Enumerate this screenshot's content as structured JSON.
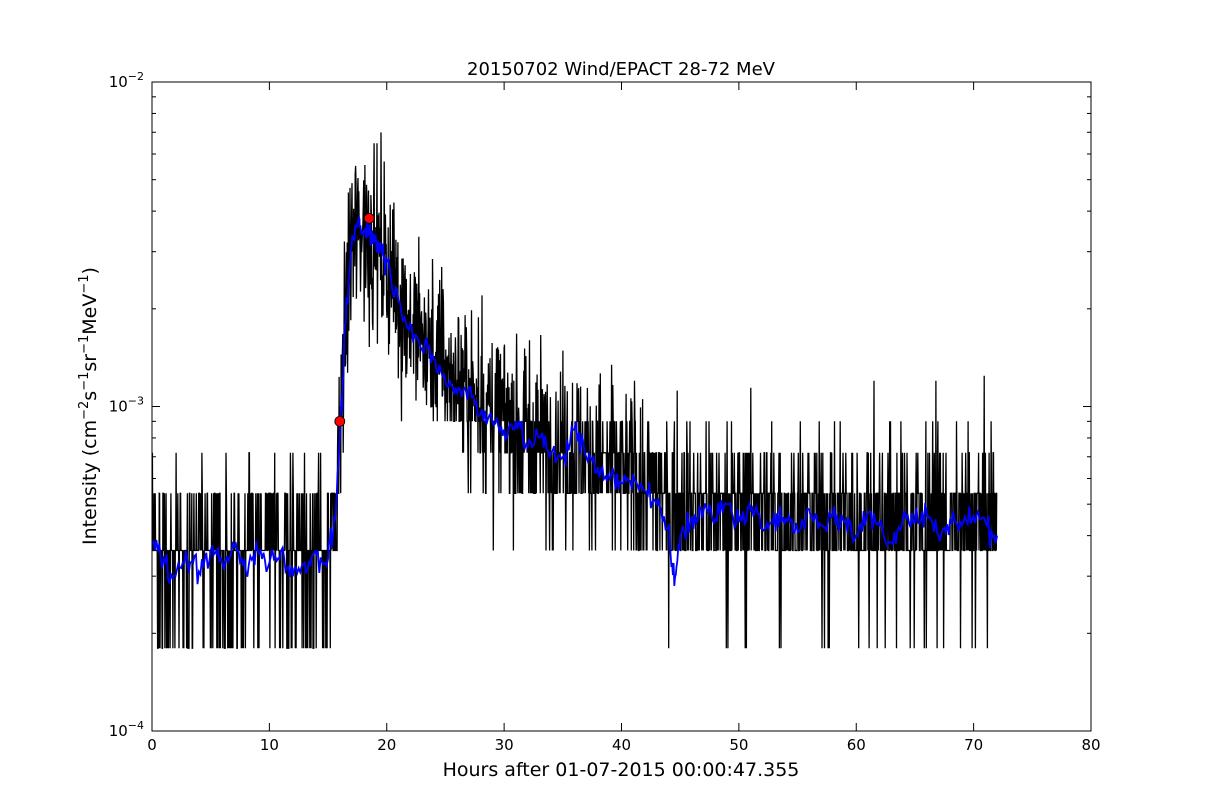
{
  "chart_data": {
    "type": "line",
    "title": "20150702 Wind/EPACT 28-72 MeV",
    "xlabel": "Hours after 01-07-2015 00:00:47.355",
    "ylabel_parts": {
      "prefix": "Intensity (cm",
      "exp1": "−2",
      "mid1": "s",
      "exp2": "−1",
      "mid2": "sr",
      "exp3": "−1",
      "mid3": "MeV",
      "exp4": "−1",
      "suffix": ")"
    },
    "xlim": [
      0,
      80
    ],
    "ylim": [
      0.0001,
      0.01
    ],
    "yscale": "log",
    "xticks": [
      0,
      10,
      20,
      30,
      40,
      50,
      60,
      70,
      80
    ],
    "yticks": [
      {
        "value": 0.0001,
        "base": "10",
        "exp": "−4"
      },
      {
        "value": 0.001,
        "base": "10",
        "exp": "−3"
      },
      {
        "value": 0.01,
        "base": "10",
        "exp": "−2"
      }
    ],
    "grid": false,
    "colors": {
      "raw": "#000000",
      "smoothed": "#0000ff",
      "markers": "#ff0000"
    },
    "series": [
      {
        "style": "raw-line",
        "x_range": [
          0.0,
          72.0
        ],
        "levels": [
          0.00018,
          0.00036,
          0.00054,
          0.00072,
          0.0009
        ],
        "envelope": [
          {
            "x": 0.0,
            "y": 0.00035
          },
          {
            "x": 15.7,
            "y": 0.00035
          },
          {
            "x": 16.0,
            "y": 0.0009
          },
          {
            "x": 16.5,
            "y": 0.0018
          },
          {
            "x": 17.0,
            "y": 0.0032
          },
          {
            "x": 18.0,
            "y": 0.0036
          },
          {
            "x": 19.5,
            "y": 0.003
          },
          {
            "x": 21.0,
            "y": 0.0022
          },
          {
            "x": 23.0,
            "y": 0.0016
          },
          {
            "x": 25.0,
            "y": 0.0013
          },
          {
            "x": 28.0,
            "y": 0.001
          },
          {
            "x": 32.0,
            "y": 0.0008
          },
          {
            "x": 36.0,
            "y": 0.00075
          },
          {
            "x": 40.0,
            "y": 0.00062
          },
          {
            "x": 44.0,
            "y": 0.0005
          },
          {
            "x": 50.0,
            "y": 0.00047
          },
          {
            "x": 60.0,
            "y": 0.00044
          },
          {
            "x": 72.0,
            "y": 0.00043
          }
        ],
        "peak_values": [
          {
            "x": 17.3,
            "y": 0.0052
          },
          {
            "x": 24.8,
            "y": 0.0023
          },
          {
            "x": 28.1,
            "y": 0.0022
          },
          {
            "x": 41.1,
            "y": 0.0012
          },
          {
            "x": 61.5,
            "y": 0.0012
          },
          {
            "x": 66.8,
            "y": 0.0012
          }
        ]
      },
      {
        "style": "smoothed-line",
        "points": [
          [
            0.0,
            0.00038
          ],
          [
            1.0,
            0.00034
          ],
          [
            2.0,
            0.0003
          ],
          [
            3.0,
            0.00034
          ],
          [
            4.0,
            0.00031
          ],
          [
            5.0,
            0.00036
          ],
          [
            6.0,
            0.00033
          ],
          [
            7.0,
            0.00037
          ],
          [
            8.0,
            0.00031
          ],
          [
            9.0,
            0.00036
          ],
          [
            10.0,
            0.00033
          ],
          [
            11.0,
            0.00036
          ],
          [
            12.0,
            0.0003
          ],
          [
            13.0,
            0.00033
          ],
          [
            14.0,
            0.00035
          ],
          [
            15.0,
            0.00034
          ],
          [
            15.6,
            0.00045
          ],
          [
            16.0,
            0.0008
          ],
          [
            16.5,
            0.0018
          ],
          [
            17.0,
            0.0031
          ],
          [
            17.5,
            0.0037
          ],
          [
            18.0,
            0.0034
          ],
          [
            18.5,
            0.0036
          ],
          [
            19.0,
            0.0032
          ],
          [
            19.5,
            0.0031
          ],
          [
            20.0,
            0.0028
          ],
          [
            21.0,
            0.0021
          ],
          [
            22.0,
            0.0018
          ],
          [
            23.0,
            0.0015
          ],
          [
            24.0,
            0.0014
          ],
          [
            25.0,
            0.0012
          ],
          [
            26.0,
            0.0011
          ],
          [
            27.0,
            0.00115
          ],
          [
            28.0,
            0.00095
          ],
          [
            29.0,
            0.0009
          ],
          [
            30.0,
            0.00085
          ],
          [
            31.0,
            0.0009
          ],
          [
            32.0,
            0.00075
          ],
          [
            33.0,
            0.0008
          ],
          [
            34.0,
            0.00072
          ],
          [
            35.0,
            0.0007
          ],
          [
            36.0,
            0.00085
          ],
          [
            37.0,
            0.0007
          ],
          [
            38.0,
            0.00065
          ],
          [
            39.0,
            0.0006
          ],
          [
            40.0,
            0.00058
          ],
          [
            41.0,
            0.00062
          ],
          [
            42.0,
            0.00055
          ],
          [
            43.0,
            0.0005
          ],
          [
            44.0,
            0.00042
          ],
          [
            44.5,
            0.00028
          ],
          [
            45.0,
            0.0004
          ],
          [
            46.0,
            0.00046
          ],
          [
            47.0,
            0.00048
          ],
          [
            48.0,
            0.00045
          ],
          [
            49.0,
            0.0005
          ],
          [
            50.0,
            0.00044
          ],
          [
            51.0,
            0.00048
          ],
          [
            52.0,
            0.00042
          ],
          [
            53.0,
            0.00047
          ],
          [
            54.0,
            0.00045
          ],
          [
            55.0,
            0.00041
          ],
          [
            56.0,
            0.00048
          ],
          [
            57.0,
            0.00043
          ],
          [
            58.0,
            0.00046
          ],
          [
            59.0,
            0.00044
          ],
          [
            60.0,
            0.0004
          ],
          [
            61.0,
            0.00047
          ],
          [
            62.0,
            0.00043
          ],
          [
            63.0,
            0.00038
          ],
          [
            64.0,
            0.00046
          ],
          [
            65.0,
            0.00044
          ],
          [
            66.0,
            0.00047
          ],
          [
            67.0,
            0.0004
          ],
          [
            68.0,
            0.00045
          ],
          [
            69.0,
            0.00043
          ],
          [
            70.0,
            0.00046
          ],
          [
            71.0,
            0.00044
          ],
          [
            72.0,
            0.0004
          ]
        ]
      },
      {
        "style": "markers",
        "points": [
          [
            16.0,
            0.0009
          ],
          [
            18.5,
            0.0038
          ]
        ]
      }
    ]
  }
}
